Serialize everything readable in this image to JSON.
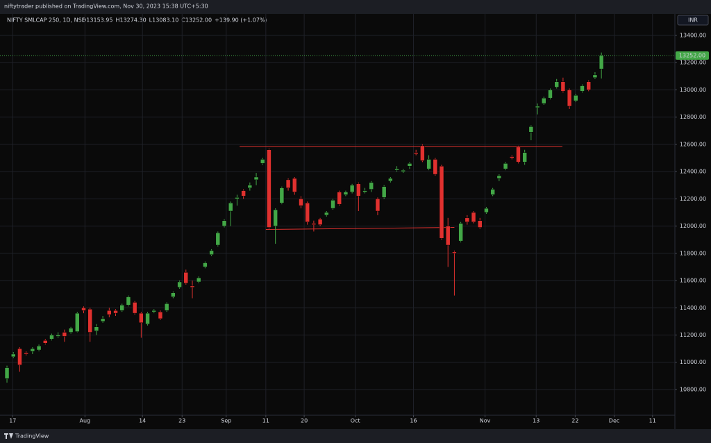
{
  "top_bar": {
    "text": "niftytrader published on TradingView.com, Nov 30, 2023 15:38 UTC+5:30"
  },
  "chart_data": {
    "type": "candlestick",
    "symbol": "NIFTY SMLCAP 250, 1D, NSE",
    "ohlc_labels": [
      "O13153.95",
      "H13274.30",
      "L13083.10",
      "C13252.00"
    ],
    "change_label": "+139.90 (+1.07%)",
    "currency": "INR",
    "up_color": "#43a747",
    "down_color": "#e0312f",
    "grid": true,
    "open": [
      10880,
      11040,
      11100,
      11070,
      11080,
      11090,
      11160,
      11170,
      11190,
      11220,
      11220,
      11225,
      11400,
      11390,
      11230,
      11300,
      11380,
      11380,
      11380,
      11420,
      11440,
      11360,
      11280,
      11370,
      11370,
      11380,
      11480,
      11550,
      11660,
      11560,
      11590,
      11700,
      11790,
      11860,
      12000,
      12110,
      12200,
      12260,
      12280,
      12340,
      12460,
      12560,
      12000,
      12170,
      12340,
      12350,
      12200,
      12170,
      12020,
      12050,
      12080,
      12130,
      12250,
      12230,
      12250,
      12310,
      12250,
      12270,
      12200,
      12210,
      12330,
      12410,
      12400,
      12440,
      12540,
      12590,
      12420,
      12490,
      12440,
      12000,
      11810,
      11890,
      12060,
      12100,
      12040,
      12100,
      12230,
      12350,
      12420,
      12510,
      12580,
      12470,
      12690,
      12870,
      12900,
      12940,
      13020,
      13060,
      13000,
      12920,
      12990,
      13060,
      13090,
      13153.95
    ],
    "high": [
      10975,
      11075,
      11110,
      11080,
      11110,
      11130,
      11170,
      11210,
      11220,
      11240,
      11260,
      11370,
      11410,
      11400,
      11280,
      11340,
      11400,
      11390,
      11430,
      11490,
      11450,
      11370,
      11370,
      11390,
      11380,
      11440,
      11520,
      11600,
      11680,
      11600,
      11630,
      11740,
      11830,
      11960,
      12050,
      12180,
      12230,
      12270,
      12320,
      12390,
      12500,
      12570,
      12130,
      12290,
      12350,
      12360,
      12220,
      12180,
      12040,
      12060,
      12110,
      12200,
      12260,
      12260,
      12310,
      12320,
      12280,
      12330,
      12210,
      12300,
      12360,
      12440,
      12420,
      12470,
      12560,
      12600,
      12520,
      12500,
      12450,
      12060,
      11820,
      12030,
      12080,
      12110,
      12060,
      12140,
      12280,
      12380,
      12470,
      12520,
      12590,
      12560,
      12740,
      12900,
      12950,
      13010,
      13080,
      13090,
      13010,
      12970,
      13040,
      13070,
      13130,
      13274.3
    ],
    "low": [
      10850,
      11030,
      10930,
      11050,
      11060,
      11080,
      11130,
      11160,
      11180,
      11150,
      11210,
      11220,
      11360,
      11150,
      11200,
      11290,
      11330,
      11340,
      11370,
      11410,
      11350,
      11180,
      11270,
      11360,
      11310,
      11370,
      11470,
      11540,
      11570,
      11470,
      11580,
      11690,
      11780,
      11850,
      11990,
      12000,
      12150,
      12200,
      12260,
      12300,
      12450,
      11980,
      11870,
      12160,
      12260,
      12230,
      12130,
      12010,
      11960,
      12000,
      12070,
      12120,
      12150,
      12220,
      12240,
      12110,
      12240,
      12250,
      12080,
      12200,
      12320,
      12400,
      12390,
      12420,
      12520,
      12470,
      12410,
      12370,
      11900,
      11700,
      11490,
      11880,
      12010,
      12020,
      11980,
      12090,
      12220,
      12330,
      12410,
      12490,
      12460,
      12450,
      12630,
      12820,
      12890,
      12930,
      13010,
      12980,
      12860,
      12910,
      12980,
      12990,
      13080,
      13083.1
    ],
    "close": [
      10960,
      11060,
      10980,
      11060,
      11100,
      11120,
      11140,
      11200,
      11200,
      11190,
      11250,
      11360,
      11380,
      11220,
      11260,
      11320,
      11350,
      11360,
      11420,
      11480,
      11360,
      11290,
      11360,
      11380,
      11320,
      11430,
      11510,
      11590,
      11580,
      11550,
      11620,
      11730,
      11820,
      11950,
      12040,
      12170,
      12210,
      12220,
      12300,
      12360,
      12490,
      11990,
      12120,
      12280,
      12280,
      12250,
      12150,
      12030,
      12010,
      12010,
      12100,
      12190,
      12160,
      12250,
      12300,
      12220,
      12260,
      12320,
      12110,
      12290,
      12350,
      12420,
      12410,
      12460,
      12530,
      12480,
      12490,
      12380,
      11910,
      11860,
      11800,
      12020,
      12030,
      12030,
      11990,
      12130,
      12270,
      12370,
      12460,
      12500,
      12470,
      12540,
      12730,
      12880,
      12940,
      13000,
      13060,
      12990,
      12880,
      12960,
      13030,
      13000,
      13110,
      13252
    ],
    "last_label": "13252.00",
    "lines": [
      {
        "color": "#e0312f",
        "x": [
          36.4,
          86.9
        ],
        "y": [
          12585,
          12585
        ]
      },
      {
        "color": "#e0312f",
        "x": [
          40.5,
          70
        ],
        "y": [
          11975,
          11990
        ]
      }
    ],
    "xlim": [
      -1.09,
      104.5
    ],
    "xticks": [
      {
        "value": 0.9,
        "label": "17"
      },
      {
        "value": 12.2,
        "label": "Aug"
      },
      {
        "value": 21.2,
        "label": "14"
      },
      {
        "value": 27.4,
        "label": "23"
      },
      {
        "value": 34.3,
        "label": "Sep"
      },
      {
        "value": 40.5,
        "label": "11"
      },
      {
        "value": 46.5,
        "label": "20"
      },
      {
        "value": 54.5,
        "label": "Oct"
      },
      {
        "value": 63.6,
        "label": "16"
      },
      {
        "value": 74.8,
        "label": "Nov"
      },
      {
        "value": 82.8,
        "label": "13"
      },
      {
        "value": 88.9,
        "label": "22"
      },
      {
        "value": 95,
        "label": "Dec"
      },
      {
        "value": 101,
        "label": "11"
      }
    ],
    "ylim": [
      10611,
      13558
    ],
    "yticks": [
      {
        "value": 10800,
        "label": "10800.00"
      },
      {
        "value": 11000,
        "label": "11000.00"
      },
      {
        "value": 11200,
        "label": "11200.00"
      },
      {
        "value": 11400,
        "label": "11400.00"
      },
      {
        "value": 11600,
        "label": "11600.00"
      },
      {
        "value": 11800,
        "label": "11800.00"
      },
      {
        "value": 12000,
        "label": "12000.00"
      },
      {
        "value": 12200,
        "label": "12200.00"
      },
      {
        "value": 12400,
        "label": "12400.00"
      },
      {
        "value": 12600,
        "label": "12600.00"
      },
      {
        "value": 12800,
        "label": "12800.00"
      },
      {
        "value": 13000,
        "label": "13000.00"
      },
      {
        "value": 13200,
        "label": "13200.00"
      },
      {
        "value": 13400,
        "label": "13400.00"
      }
    ]
  },
  "footer": {
    "brand": "TradingView"
  }
}
